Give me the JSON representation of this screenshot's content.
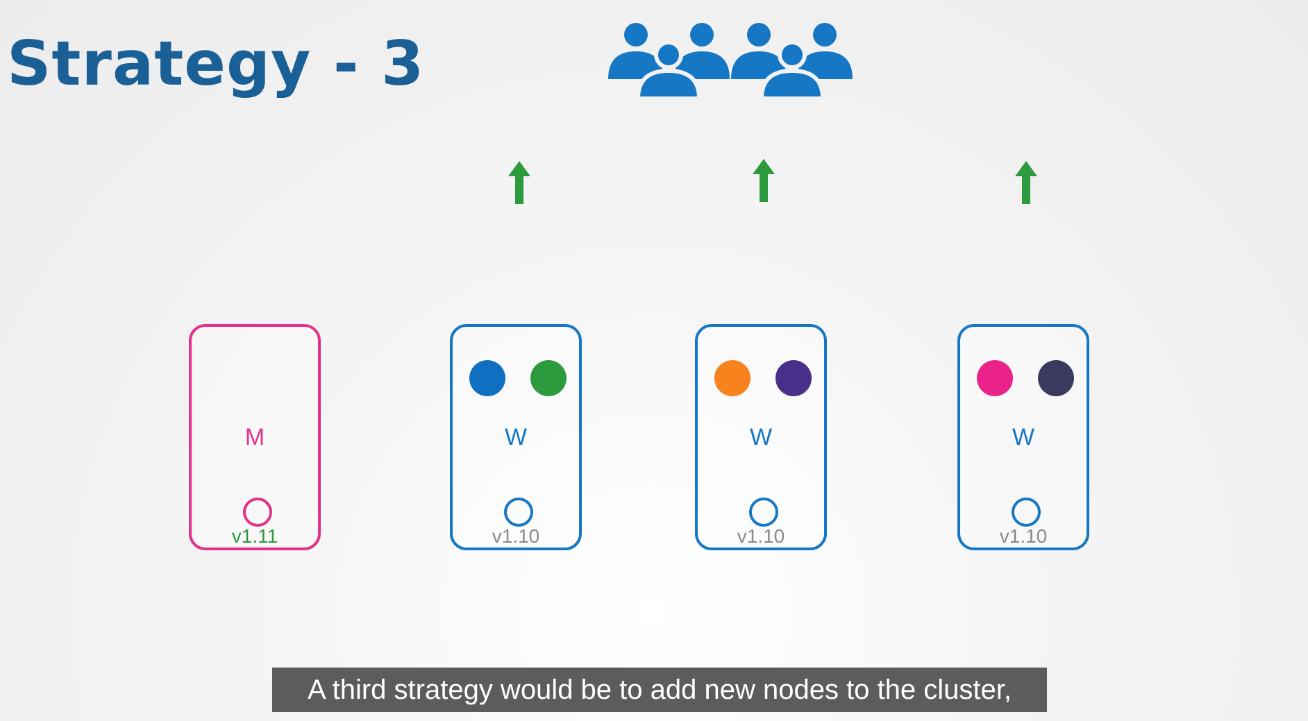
{
  "title": "Strategy - 3",
  "colors": {
    "title": "#1a5f96",
    "worker_border": "#1677c4",
    "master_border": "#e0338c",
    "users_icon": "#1677c4",
    "arrow": "#2e9a3e",
    "master_version": "#2e9a3e",
    "worker_version": "#8a8a8a"
  },
  "users_icon": "users-group-icon",
  "master": {
    "label": "M",
    "version": "v1.11"
  },
  "workers": [
    {
      "label": "W",
      "version": "v1.10",
      "pods": [
        "#0f6fc1",
        "#2e9a3e"
      ]
    },
    {
      "label": "W",
      "version": "v1.10",
      "pods": [
        "#f7821e",
        "#4a2f8a"
      ]
    },
    {
      "label": "W",
      "version": "v1.10",
      "pods": [
        "#e9238a",
        "#3b3a5e"
      ]
    }
  ],
  "subtitle": "A third strategy would be to add new nodes to the cluster,"
}
